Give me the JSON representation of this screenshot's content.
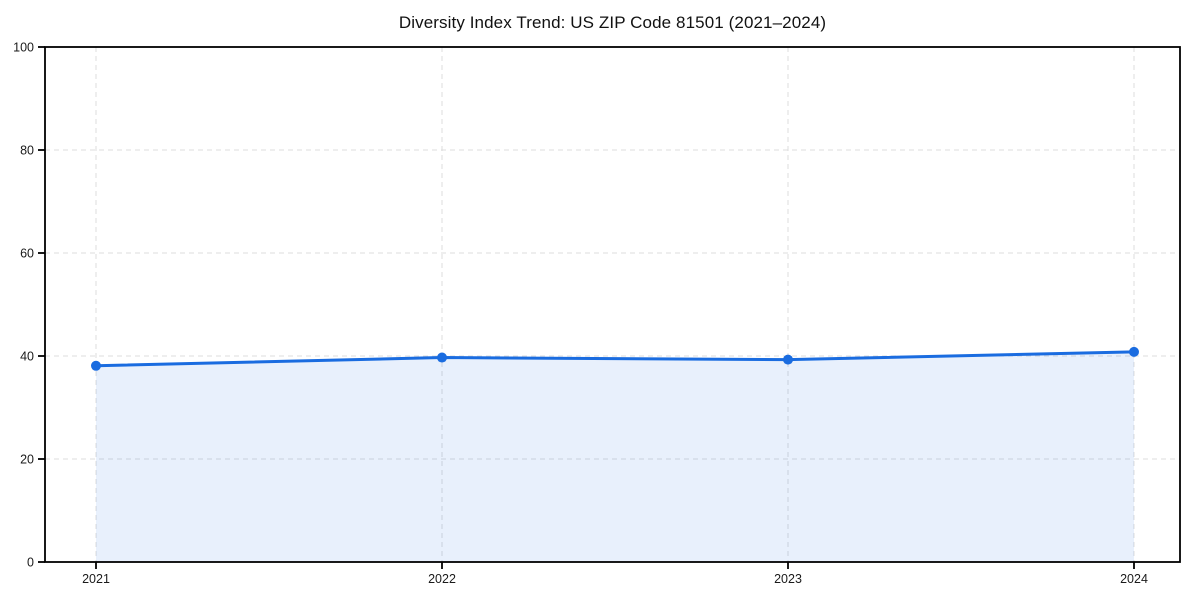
{
  "title": "Diversity Index Trend: US ZIP Code 81501 (2021–2024)",
  "colors": {
    "line": "#1a6ce0",
    "marker": "#1a6ce0",
    "area_fill": "rgba(26,108,224,0.10)",
    "grid": "#dcdcdc",
    "spine": "#000000",
    "tick": "#000000",
    "tick_label": "#1a1a1a",
    "background": "#ffffff"
  },
  "chart_data": {
    "type": "area",
    "title": "Diversity Index Trend: US ZIP Code 81501 (2021–2024)",
    "x": [
      2021,
      2022,
      2023,
      2024
    ],
    "xticks": [
      "2021",
      "2022",
      "2023",
      "2024"
    ],
    "series": [
      {
        "name": "Diversity Index",
        "values": [
          38.1,
          39.7,
          39.3,
          40.8
        ]
      }
    ],
    "xlabel": "",
    "ylabel": "",
    "ylim": [
      0,
      100
    ],
    "yticks": [
      0,
      20,
      40,
      60,
      80,
      100
    ],
    "grid": true,
    "grid_style": "dashed",
    "legend": "none",
    "frame": "box",
    "fill_to_zero": true
  }
}
